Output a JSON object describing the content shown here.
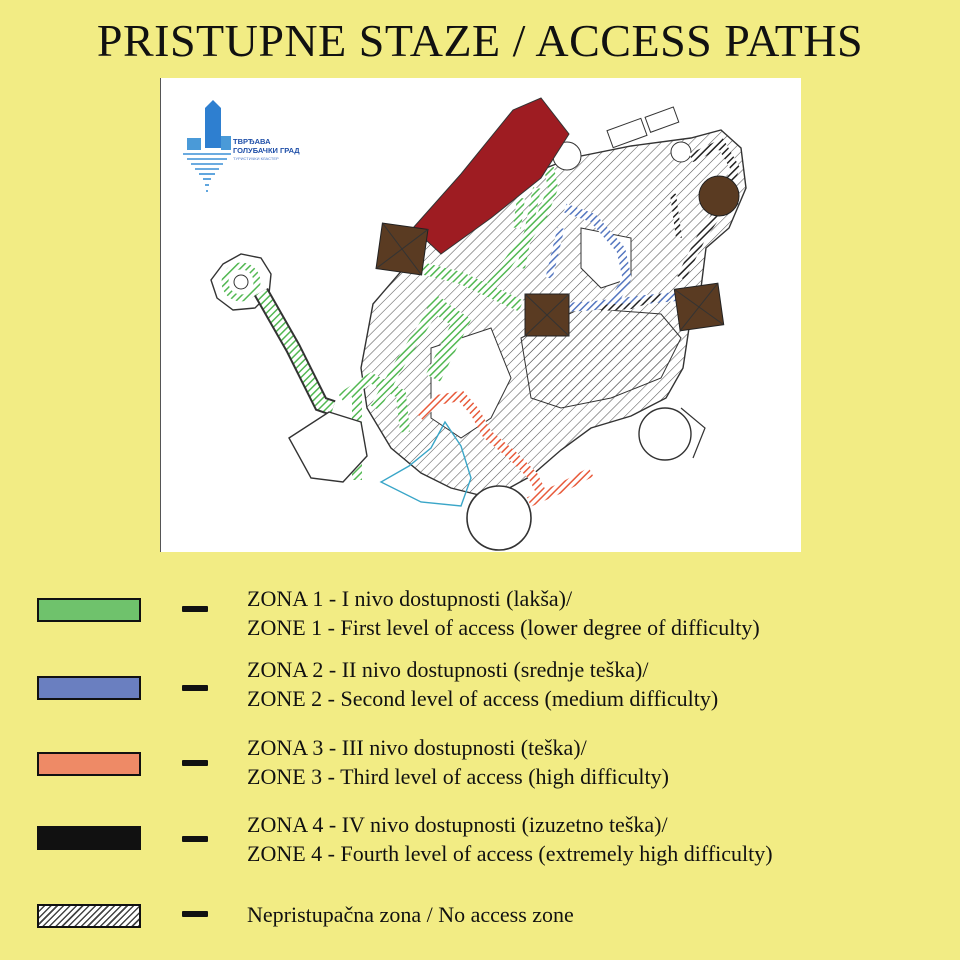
{
  "title": "PRISTUPNE STAZE / ACCESS PATHS",
  "logo": {
    "name_line1": "ТВРЂАВА",
    "name_line2": "ГОЛУБАЧКИ ГРАД",
    "tagline": "ТУРИСТИЧКИ КЛАСТЕР"
  },
  "legend": [
    {
      "zone": "zone-1",
      "color": "#6fc26c",
      "line1": "ZONA 1 - I nivo dostupnosti (lakša)/",
      "line2": "ZONE 1 - First level of access (lower degree of difficulty)"
    },
    {
      "zone": "zone-2",
      "color": "#6a7fc0",
      "line1": "ZONA 2 - II nivo dostupnosti (srednje teška)/",
      "line2": "ZONE 2 - Second level of access (medium difficulty)"
    },
    {
      "zone": "zone-3",
      "color": "#ee8a66",
      "line1": "ZONA 3 - III nivo dostupnosti (teška)/",
      "line2": "ZONE 3 - Third level of access (high difficulty)"
    },
    {
      "zone": "zone-4",
      "color": "#111111",
      "line1": "ZONA 4 - IV nivo dostupnosti (izuzetno teška)/",
      "line2": "ZONE 4 - Fourth level of access (extremely high difficulty)"
    },
    {
      "zone": "no-access",
      "color": "hatched",
      "line1": "Nepristupačna zona / No access zone",
      "line2": ""
    }
  ],
  "colors": {
    "background": "#f2ec84",
    "tower": "#5a3b22",
    "roof_red": "#9e1c22",
    "hatch": "#555555"
  }
}
